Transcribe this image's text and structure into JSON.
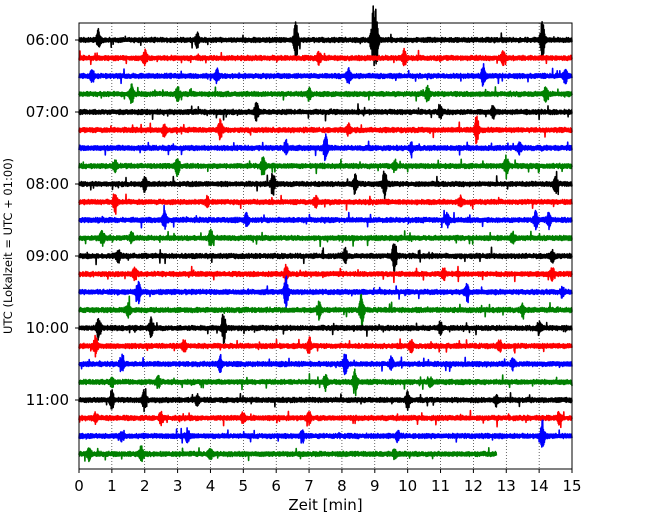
{
  "chart_data": {
    "type": "line",
    "title": "",
    "xlabel": "Zeit  [min]",
    "ylabel": "UTC (Lokalzeit = UTC + 01:00)",
    "xlim": [
      0,
      15
    ],
    "x_ticks": [
      "0",
      "1",
      "2",
      "3",
      "4",
      "5",
      "6",
      "7",
      "8",
      "9",
      "10",
      "11",
      "12",
      "13",
      "14",
      "15"
    ],
    "y_ticks": [
      "06:00",
      "07:00",
      "08:00",
      "09:00",
      "10:00",
      "11:00"
    ],
    "grid": "vertical-dotted",
    "colors": [
      "#000000",
      "#ff0000",
      "#0000ff",
      "#008000"
    ],
    "trace_count": 24,
    "traces": [
      {
        "label": "06:00",
        "color": "#000000",
        "events": [
          [
            0.6,
            10
          ],
          [
            6.6,
            20
          ],
          [
            8.95,
            32
          ],
          [
            9.05,
            26
          ],
          [
            14.1,
            20
          ],
          [
            3.6,
            6
          ]
        ]
      },
      {
        "label": "06:15",
        "color": "#ff0000",
        "events": [
          [
            2.0,
            7
          ],
          [
            7.3,
            6
          ],
          [
            9.9,
            8
          ],
          [
            12.9,
            6
          ]
        ]
      },
      {
        "label": "06:30",
        "color": "#0000ff",
        "events": [
          [
            0.4,
            6
          ],
          [
            4.2,
            6
          ],
          [
            8.2,
            7
          ],
          [
            12.3,
            10
          ],
          [
            14.8,
            8
          ]
        ]
      },
      {
        "label": "06:45",
        "color": "#008000",
        "events": [
          [
            1.6,
            9
          ],
          [
            3.0,
            7
          ],
          [
            7.0,
            5
          ],
          [
            10.6,
            7
          ],
          [
            14.2,
            6
          ]
        ]
      },
      {
        "label": "07:00",
        "color": "#000000",
        "events": [
          [
            5.4,
            9
          ],
          [
            11.0,
            5
          ],
          [
            12.6,
            5
          ]
        ]
      },
      {
        "label": "07:15",
        "color": "#ff0000",
        "events": [
          [
            2.6,
            6
          ],
          [
            4.3,
            10
          ],
          [
            8.2,
            5
          ],
          [
            12.1,
            14
          ]
        ]
      },
      {
        "label": "07:30",
        "color": "#0000ff",
        "events": [
          [
            6.3,
            7
          ],
          [
            7.5,
            13
          ],
          [
            10.1,
            5
          ],
          [
            13.4,
            5
          ]
        ]
      },
      {
        "label": "07:45",
        "color": "#008000",
        "events": [
          [
            1.1,
            6
          ],
          [
            3.0,
            9
          ],
          [
            5.6,
            10
          ],
          [
            9.6,
            6
          ],
          [
            13.0,
            10
          ]
        ]
      },
      {
        "label": "08:00",
        "color": "#000000",
        "events": [
          [
            2.0,
            7
          ],
          [
            5.9,
            12
          ],
          [
            8.4,
            10
          ],
          [
            9.3,
            14
          ],
          [
            14.5,
            9
          ]
        ]
      },
      {
        "label": "08:15",
        "color": "#ff0000",
        "events": [
          [
            1.1,
            12
          ],
          [
            3.9,
            5
          ],
          [
            7.2,
            5
          ],
          [
            11.6,
            5
          ]
        ]
      },
      {
        "label": "08:30",
        "color": "#0000ff",
        "events": [
          [
            2.6,
            8
          ],
          [
            5.1,
            6
          ],
          [
            11.2,
            6
          ],
          [
            13.9,
            8
          ],
          [
            14.3,
            7
          ]
        ]
      },
      {
        "label": "08:45",
        "color": "#008000",
        "events": [
          [
            0.7,
            8
          ],
          [
            1.6,
            5
          ],
          [
            4.0,
            9
          ],
          [
            13.2,
            5
          ]
        ]
      },
      {
        "label": "09:00",
        "color": "#000000",
        "events": [
          [
            9.6,
            18
          ],
          [
            1.2,
            6
          ],
          [
            8.1,
            7
          ],
          [
            14.4,
            6
          ]
        ]
      },
      {
        "label": "09:15",
        "color": "#ff0000",
        "events": [
          [
            1.7,
            6
          ],
          [
            6.3,
            8
          ],
          [
            11.1,
            5
          ],
          [
            14.4,
            6
          ]
        ]
      },
      {
        "label": "09:30",
        "color": "#0000ff",
        "events": [
          [
            1.8,
            11
          ],
          [
            6.3,
            18
          ],
          [
            11.8,
            7
          ],
          [
            14.7,
            5
          ]
        ]
      },
      {
        "label": "09:45",
        "color": "#008000",
        "events": [
          [
            1.5,
            7
          ],
          [
            7.3,
            8
          ],
          [
            8.6,
            18
          ],
          [
            13.5,
            5
          ]
        ]
      },
      {
        "label": "10:00",
        "color": "#000000",
        "events": [
          [
            0.6,
            12
          ],
          [
            2.2,
            9
          ],
          [
            4.4,
            16
          ],
          [
            11.0,
            6
          ],
          [
            14.0,
            7
          ]
        ]
      },
      {
        "label": "10:15",
        "color": "#ff0000",
        "events": [
          [
            0.5,
            9
          ],
          [
            3.2,
            6
          ],
          [
            7.0,
            8
          ],
          [
            10.1,
            6
          ],
          [
            12.8,
            5
          ]
        ]
      },
      {
        "label": "10:30",
        "color": "#0000ff",
        "events": [
          [
            1.3,
            9
          ],
          [
            4.3,
            7
          ],
          [
            8.1,
            10
          ],
          [
            9.5,
            6
          ],
          [
            13.2,
            5
          ]
        ]
      },
      {
        "label": "10:45",
        "color": "#008000",
        "events": [
          [
            1.0,
            6
          ],
          [
            2.4,
            6
          ],
          [
            7.5,
            8
          ],
          [
            8.4,
            15
          ],
          [
            10.7,
            5
          ]
        ]
      },
      {
        "label": "11:00",
        "color": "#000000",
        "events": [
          [
            1.0,
            9
          ],
          [
            2.0,
            12
          ],
          [
            3.6,
            5
          ],
          [
            10.0,
            8
          ],
          [
            12.7,
            5
          ]
        ]
      },
      {
        "label": "11:15",
        "color": "#ff0000",
        "events": [
          [
            0.5,
            5
          ],
          [
            2.5,
            6
          ],
          [
            5.0,
            5
          ],
          [
            7.0,
            5
          ],
          [
            14.6,
            5
          ]
        ]
      },
      {
        "label": "11:30",
        "color": "#0000ff",
        "events": [
          [
            1.3,
            5
          ],
          [
            3.3,
            6
          ],
          [
            6.8,
            5
          ],
          [
            9.7,
            5
          ],
          [
            14.1,
            14
          ]
        ]
      },
      {
        "label": "11:45",
        "color": "#008000",
        "events": [
          [
            0.3,
            6
          ],
          [
            1.9,
            8
          ],
          [
            4.0,
            5
          ],
          [
            9.6,
            5
          ]
        ],
        "end_min": 12.7
      }
    ]
  }
}
